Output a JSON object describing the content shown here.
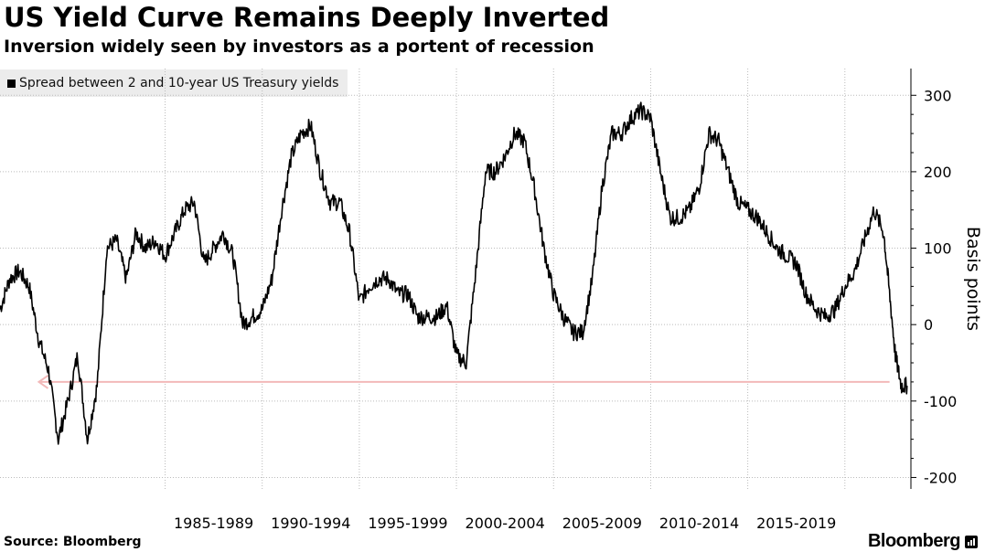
{
  "title": "US Yield Curve Remains Deeply Inverted",
  "subtitle": "Inversion widely seen by investors as a portent of recession",
  "legend": {
    "label": "Spread between 2 and 10-year US Treasury yields"
  },
  "source": "Source: Bloomberg",
  "brand": "Bloomberg",
  "colors": {
    "line": "#000000",
    "grid": "#bbbbbb",
    "arrow": "#f2b9b9",
    "axis": "#000000"
  },
  "chart_data": {
    "type": "line",
    "title": "US Yield Curve Remains Deeply Inverted",
    "ylabel": "Basis points",
    "xlabel": "",
    "ylim": [
      -215,
      335
    ],
    "xlim": [
      1976.5,
      2023.4
    ],
    "yticks": [
      300,
      200,
      100,
      0,
      -100,
      -200
    ],
    "ytick_labels": [
      "300",
      "200",
      "100",
      "0",
      "-100",
      "-200"
    ],
    "xtick_labels": [
      "1985-1989",
      "1990-1994",
      "1995-1999",
      "2000-2004",
      "2005-2009",
      "2010-2014",
      "2015-2019"
    ],
    "xtick_centers": [
      1987.5,
      1992.5,
      1997.5,
      2002.5,
      2007.5,
      2012.5,
      2017.5
    ],
    "x_gridlines": [
      1985,
      1990,
      1995,
      2000,
      2005,
      2010,
      2015,
      2020
    ],
    "grid": true,
    "legend_position": "top-left",
    "annotation": {
      "type": "arrow",
      "y": -75,
      "x_from": 2022.3,
      "x_to": 1978.5
    },
    "series": [
      {
        "name": "Spread between 2 and 10-year US Treasury yields",
        "x": [
          1976.5,
          1977.0,
          1977.5,
          1978.0,
          1978.5,
          1979.0,
          1979.5,
          1980.0,
          1980.5,
          1981.0,
          1981.5,
          1982.0,
          1982.5,
          1983.0,
          1983.5,
          1984.0,
          1984.5,
          1985.0,
          1985.5,
          1986.0,
          1986.5,
          1987.0,
          1987.5,
          1988.0,
          1988.5,
          1989.0,
          1989.5,
          1990.0,
          1990.5,
          1991.0,
          1991.5,
          1992.0,
          1992.5,
          1993.0,
          1993.5,
          1994.0,
          1994.5,
          1995.0,
          1995.5,
          1996.0,
          1996.5,
          1997.0,
          1997.5,
          1998.0,
          1998.5,
          1999.0,
          1999.5,
          2000.0,
          2000.5,
          2001.0,
          2001.5,
          2002.0,
          2002.5,
          2003.0,
          2003.5,
          2004.0,
          2004.5,
          2005.0,
          2005.5,
          2006.0,
          2006.5,
          2007.0,
          2007.5,
          2008.0,
          2008.5,
          2009.0,
          2009.5,
          2010.0,
          2010.5,
          2011.0,
          2011.5,
          2012.0,
          2012.5,
          2013.0,
          2013.5,
          2014.0,
          2014.5,
          2015.0,
          2015.5,
          2016.0,
          2016.5,
          2017.0,
          2017.5,
          2018.0,
          2018.5,
          2019.0,
          2019.5,
          2020.0,
          2020.5,
          2021.0,
          2021.5,
          2022.0,
          2022.3,
          2022.6,
          2022.9,
          2023.2
        ],
        "values": [
          20,
          60,
          70,
          50,
          -20,
          -60,
          -150,
          -100,
          -40,
          -150,
          -80,
          100,
          110,
          60,
          120,
          100,
          110,
          90,
          120,
          150,
          160,
          80,
          100,
          120,
          90,
          0,
          10,
          20,
          60,
          150,
          220,
          250,
          260,
          200,
          160,
          160,
          120,
          30,
          50,
          60,
          60,
          40,
          40,
          10,
          10,
          10,
          25,
          -40,
          -50,
          70,
          200,
          200,
          220,
          250,
          240,
          180,
          100,
          40,
          10,
          -10,
          -10,
          60,
          180,
          250,
          250,
          270,
          280,
          270,
          200,
          140,
          140,
          150,
          180,
          250,
          240,
          200,
          160,
          150,
          140,
          120,
          100,
          90,
          80,
          40,
          20,
          10,
          20,
          50,
          70,
          110,
          150,
          120,
          40,
          -40,
          -80,
          -80
        ]
      }
    ]
  }
}
